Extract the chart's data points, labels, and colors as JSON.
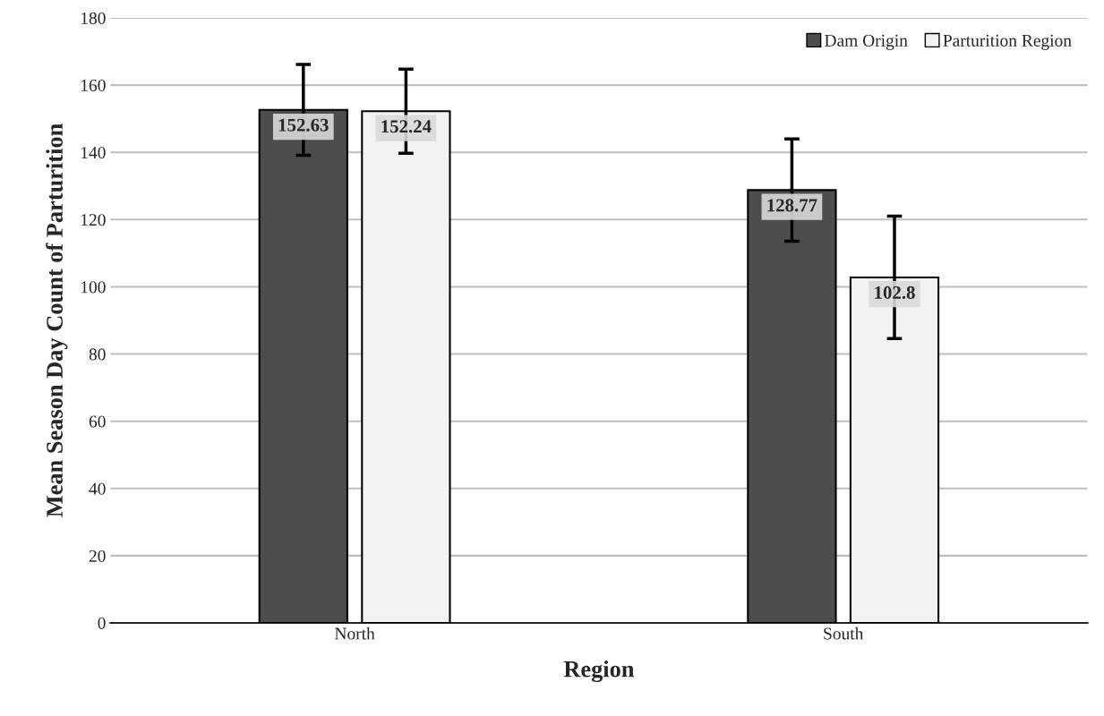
{
  "chart_data": {
    "type": "bar",
    "xlabel": "Region",
    "ylabel": "Mean Season Day Count of Parturition",
    "categories": [
      "North",
      "South"
    ],
    "series": [
      {
        "name": "Dam Origin",
        "color": "#4d4d4d",
        "values": [
          152.63,
          128.77
        ],
        "errors": [
          13.5,
          15.2
        ]
      },
      {
        "name": "Parturition Region",
        "color": "#f2f2f2",
        "values": [
          152.24,
          102.8
        ],
        "errors": [
          12.5,
          18.2
        ]
      }
    ],
    "ylim": [
      0,
      180
    ],
    "yticks": [
      0,
      20,
      40,
      60,
      80,
      100,
      120,
      140,
      160,
      180
    ],
    "grid": "y",
    "legend": "top right",
    "data_labels": true
  }
}
